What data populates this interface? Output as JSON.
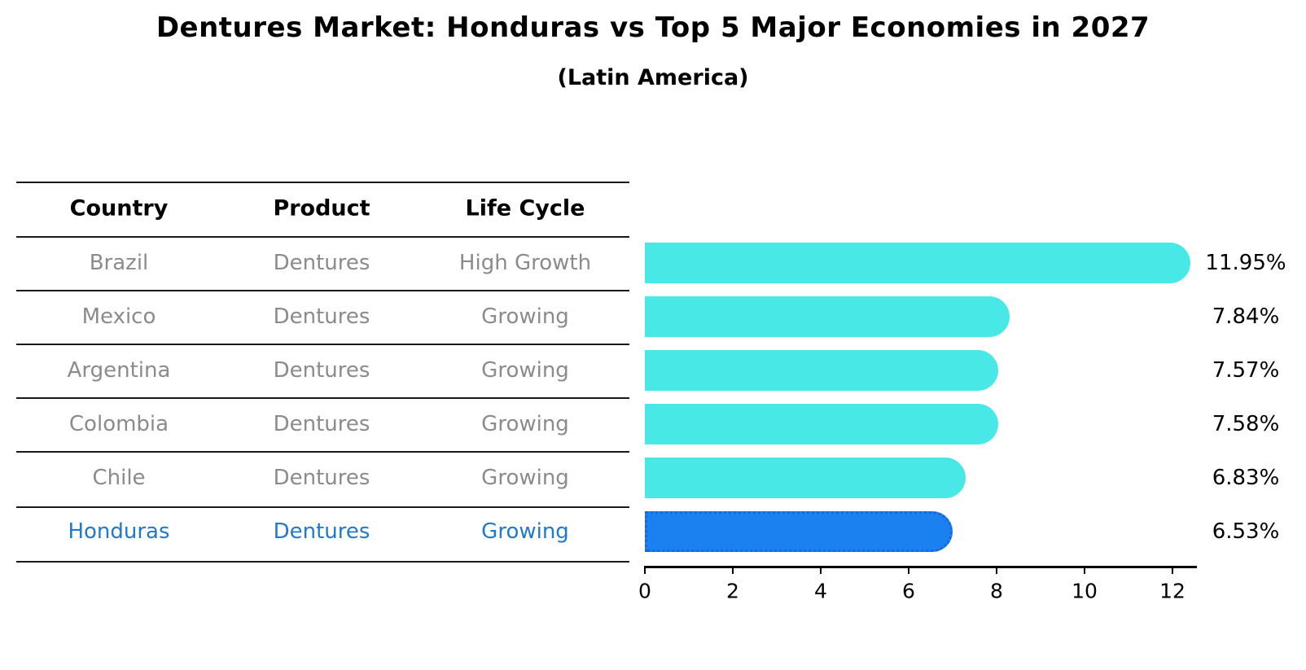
{
  "title": "Dentures Market: Honduras vs Top 5 Major Economies in 2027",
  "subtitle": "(Latin America)",
  "table": {
    "columns": [
      "Country",
      "Product",
      "Life Cycle"
    ],
    "rows": [
      {
        "country": "Brazil",
        "product": "Dentures",
        "life_cycle": "High Growth",
        "highlight": false
      },
      {
        "country": "Mexico",
        "product": "Dentures",
        "life_cycle": "Growing",
        "highlight": false
      },
      {
        "country": "Argentina",
        "product": "Dentures",
        "life_cycle": "Growing",
        "highlight": false
      },
      {
        "country": "Colombia",
        "product": "Dentures",
        "life_cycle": "Growing",
        "highlight": false
      },
      {
        "country": "Chile",
        "product": "Dentures",
        "life_cycle": "Growing",
        "highlight": false
      },
      {
        "country": "Honduras",
        "product": "Dentures",
        "life_cycle": "Growing",
        "highlight": true
      }
    ]
  },
  "chart_data": {
    "type": "bar",
    "orientation": "horizontal",
    "title": "Dentures Market: Honduras vs Top 5 Major Economies in 2027",
    "subtitle": "(Latin America)",
    "categories": [
      "Brazil",
      "Mexico",
      "Argentina",
      "Colombia",
      "Chile",
      "Honduras"
    ],
    "values": [
      11.95,
      7.84,
      7.57,
      7.58,
      6.83,
      6.53
    ],
    "value_labels": [
      "11.95%",
      "7.84%",
      "7.57%",
      "7.58%",
      "6.83%",
      "6.53%"
    ],
    "x_ticks": [
      0,
      2,
      4,
      6,
      8,
      10,
      12
    ],
    "xlim": [
      0,
      12.55
    ],
    "xlabel": "",
    "ylabel": "",
    "grid": false,
    "legend": null,
    "highlight_category": "Honduras",
    "colors": {
      "bar": "#48e8e6",
      "highlight_bar": "#1b80f0",
      "highlight_bar_border": "#1668dd",
      "highlight_text": "#2279cc",
      "row_text": "#8b8b8b",
      "header_text": "#000000",
      "axis": "#000000"
    }
  }
}
